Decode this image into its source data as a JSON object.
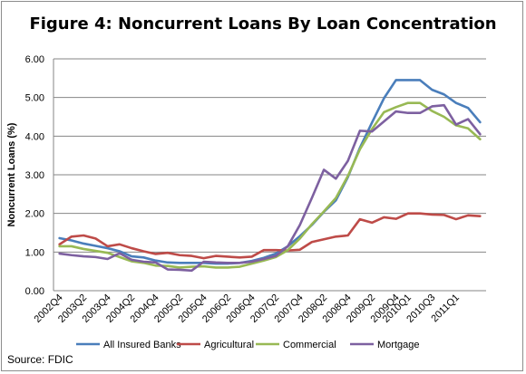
{
  "chart_data": {
    "type": "line",
    "title": "Figure 4:  Noncurrent Loans By Loan Concentration",
    "ylabel": "Noncurrent Loans (%)",
    "xlabel": "",
    "ylim": [
      0,
      6
    ],
    "yticks": [
      "0.00",
      "1.00",
      "2.00",
      "3.00",
      "4.00",
      "5.00",
      "6.00"
    ],
    "x": [
      "2002Q4",
      "2003Q1",
      "2003Q2",
      "2003Q3",
      "2003Q4",
      "2004Q1",
      "2004Q2",
      "2004Q3",
      "2004Q4",
      "2005Q1",
      "2005Q2",
      "2005Q3",
      "2005Q4",
      "2006Q1",
      "2006Q2",
      "2006Q3",
      "2006Q4",
      "2007Q1",
      "2007Q2",
      "2007Q3",
      "2007Q4",
      "2008Q1",
      "2008Q2",
      "2008Q3",
      "2008Q4",
      "2009Q1",
      "2009Q2",
      "2009Q3",
      "2009Q4",
      "2010Q1",
      "2010Q2",
      "2010Q3",
      "2010Q4",
      "2011Q1",
      "2011Q2",
      "2011Q3"
    ],
    "xtick_labels": [
      "2002Q4",
      "2003Q2",
      "2003Q4",
      "2004Q2",
      "2004Q4",
      "2005Q2",
      "2005Q4",
      "2006Q2",
      "2006Q4",
      "2007Q2",
      "2007Q4",
      "2008Q2",
      "2008Q4",
      "2009Q2",
      "2009Q4",
      "2010Q1",
      "2010Q3",
      "2011Q1"
    ],
    "grid": true,
    "legend_position": "bottom",
    "series": [
      {
        "name": "All Insured Banks",
        "color": "#4a7ebb",
        "values": [
          1.36,
          1.3,
          1.22,
          1.16,
          1.1,
          1.02,
          0.89,
          0.86,
          0.78,
          0.73,
          0.72,
          0.72,
          0.72,
          0.7,
          0.7,
          0.72,
          0.77,
          0.85,
          0.96,
          1.15,
          1.41,
          1.7,
          2.04,
          2.34,
          2.94,
          3.7,
          4.35,
          4.98,
          5.45,
          5.45,
          5.45,
          5.2,
          5.08,
          4.86,
          4.73,
          4.36
        ]
      },
      {
        "name": "Agricultural",
        "color": "#be4b48",
        "values": [
          1.2,
          1.4,
          1.43,
          1.35,
          1.15,
          1.2,
          1.1,
          1.02,
          0.95,
          0.98,
          0.92,
          0.9,
          0.84,
          0.9,
          0.88,
          0.86,
          0.88,
          1.05,
          1.05,
          1.04,
          1.06,
          1.26,
          1.33,
          1.4,
          1.43,
          1.85,
          1.76,
          1.9,
          1.86,
          2.0,
          2.0,
          1.97,
          1.96,
          1.85,
          1.95,
          1.93
        ]
      },
      {
        "name": "Commercial",
        "color": "#98b954",
        "values": [
          1.15,
          1.15,
          1.08,
          1.03,
          0.98,
          0.87,
          0.76,
          0.72,
          0.65,
          0.64,
          0.6,
          0.62,
          0.63,
          0.6,
          0.6,
          0.62,
          0.7,
          0.78,
          0.87,
          1.05,
          1.35,
          1.72,
          2.05,
          2.4,
          2.97,
          3.66,
          4.18,
          4.62,
          4.75,
          4.86,
          4.86,
          4.65,
          4.5,
          4.28,
          4.2,
          3.92
        ]
      },
      {
        "name": "Mortgage",
        "color": "#7d60a0",
        "values": [
          0.96,
          0.92,
          0.89,
          0.87,
          0.82,
          0.97,
          0.8,
          0.75,
          0.73,
          0.55,
          0.54,
          0.52,
          0.75,
          0.73,
          0.72,
          0.72,
          0.75,
          0.82,
          0.9,
          1.15,
          1.7,
          2.4,
          3.13,
          2.9,
          3.36,
          4.14,
          4.12,
          4.38,
          4.64,
          4.6,
          4.6,
          4.77,
          4.8,
          4.3,
          4.44,
          4.05
        ]
      }
    ]
  },
  "source": "Source: FDIC"
}
